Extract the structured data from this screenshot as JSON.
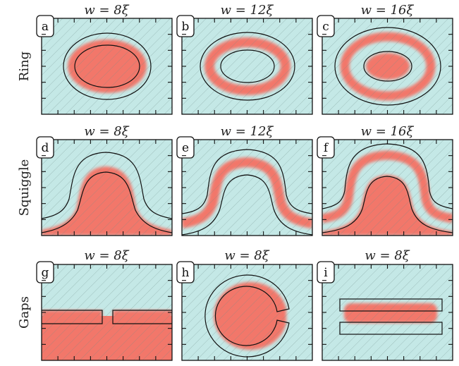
{
  "rows": [
    {
      "label": "Ring",
      "panels": [
        {
          "tag": "a",
          "title": "w = 8ξ"
        },
        {
          "tag": "b",
          "title": "w = 12ξ"
        },
        {
          "tag": "c",
          "title": "w = 16ξ"
        }
      ]
    },
    {
      "label": "Squiggle",
      "panels": [
        {
          "tag": "d",
          "title": "w = 8ξ"
        },
        {
          "tag": "e",
          "title": "w = 12ξ"
        },
        {
          "tag": "f",
          "title": "w = 16ξ"
        }
      ]
    },
    {
      "label": "Gaps",
      "panels": [
        {
          "tag": "g",
          "title": "w = 8ξ"
        },
        {
          "tag": "h",
          "title": "w = 8ξ"
        },
        {
          "tag": "i",
          "title": "w = 8ξ"
        }
      ]
    }
  ],
  "colors": {
    "background": "#c4e8e6",
    "superconductor": "#f2776a",
    "hatch": "#6f8c89",
    "outline": "#111111"
  }
}
